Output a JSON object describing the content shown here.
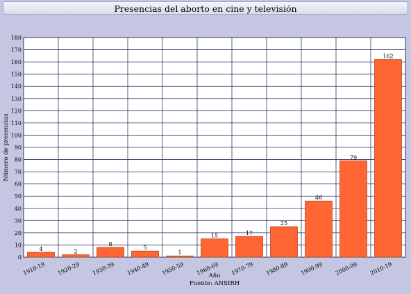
{
  "window": {
    "title": "Presencias del aborto en cine y televisión"
  },
  "chart_data": {
    "type": "bar",
    "title": "Presencias del aborto en cine y televisión",
    "xlabel": "Año",
    "ylabel": "Número de presencias",
    "footnote": "Fuente: ANSIRH",
    "categories": [
      "1910-19",
      "1920-29",
      "1930-39",
      "1940-49",
      "1950-59",
      "1960-69",
      "1970-79",
      "1980-89",
      "1990-99",
      "2000-09",
      "2010-19"
    ],
    "values": [
      4,
      2,
      8,
      5,
      1,
      15,
      17,
      25,
      46,
      79,
      162
    ],
    "ylim": [
      0,
      180
    ],
    "ytick_step": 10,
    "grid": true,
    "data_labels": true,
    "colors": {
      "bar": "#ff6633",
      "bar_edge": "#b8441d",
      "grid": "#333366",
      "plot_bg": "#ffffff",
      "page_bg": "#c4c6e2"
    }
  }
}
